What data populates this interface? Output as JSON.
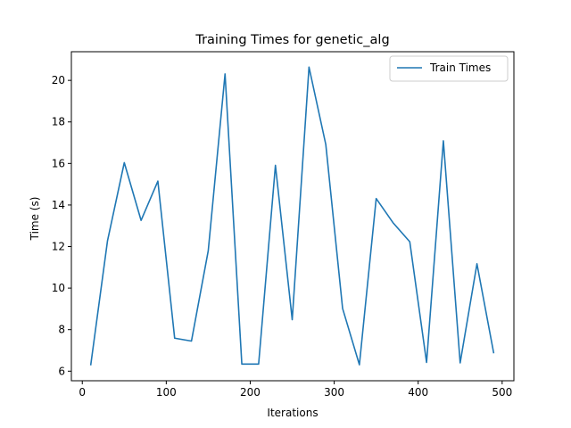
{
  "chart_data": {
    "type": "line",
    "title": "Training Times for genetic_alg",
    "xlabel": "Iterations",
    "ylabel": "Time (s)",
    "xlim": [
      -13,
      514
    ],
    "ylim": [
      5.54,
      21.38
    ],
    "xticks": [
      0,
      100,
      200,
      300,
      400,
      500
    ],
    "yticks": [
      6,
      8,
      10,
      12,
      14,
      16,
      18,
      20
    ],
    "grid": false,
    "legend_position": "top-right",
    "series": [
      {
        "name": "Train Times",
        "color": "#1f77b4",
        "x": [
          10,
          30,
          50,
          70,
          90,
          110,
          130,
          150,
          170,
          190,
          210,
          230,
          250,
          270,
          290,
          310,
          330,
          350,
          370,
          390,
          410,
          430,
          450,
          470,
          490
        ],
        "y": [
          6.28,
          12.27,
          16.04,
          13.26,
          15.15,
          7.59,
          7.45,
          11.8,
          20.31,
          6.34,
          6.34,
          15.91,
          8.48,
          20.64,
          16.91,
          9.02,
          6.31,
          14.31,
          13.15,
          12.23,
          6.42,
          17.09,
          6.4,
          11.17,
          6.86
        ]
      }
    ]
  }
}
